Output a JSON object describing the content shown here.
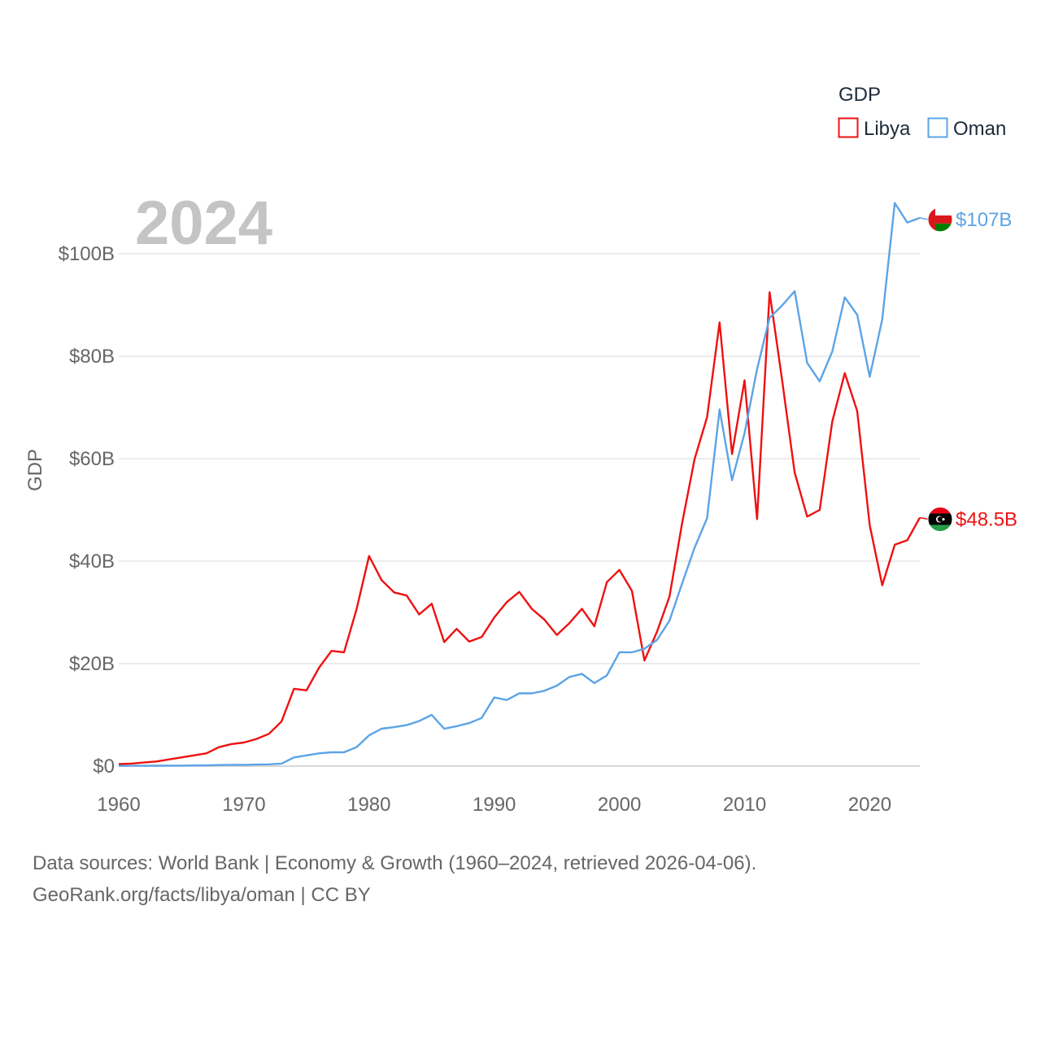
{
  "chart_data": {
    "type": "line",
    "year_label": "2024",
    "ylabel": "GDP",
    "xlabel": "",
    "xlim": [
      1960,
      2024
    ],
    "ylim": [
      0,
      110
    ],
    "x_ticks": [
      1960,
      1970,
      1980,
      1990,
      2000,
      2010,
      2020
    ],
    "y_ticks": [
      0,
      20,
      40,
      60,
      80,
      100
    ],
    "y_tick_labels": [
      "$0",
      "$20B",
      "$40B",
      "$60B",
      "$80B",
      "$100B"
    ],
    "legend": {
      "title": "GDP",
      "position": "top-right"
    },
    "series": [
      {
        "name": "Libya",
        "color": "#ee1111",
        "end_label": "$48.5B",
        "flag": "libya-flag-icon",
        "x": [
          1960,
          1961,
          1962,
          1963,
          1964,
          1965,
          1966,
          1967,
          1968,
          1969,
          1970,
          1971,
          1972,
          1973,
          1974,
          1975,
          1976,
          1977,
          1978,
          1979,
          1980,
          1981,
          1982,
          1983,
          1984,
          1985,
          1986,
          1987,
          1988,
          1989,
          1990,
          1991,
          1992,
          1993,
          1994,
          1995,
          1996,
          1997,
          1998,
          1999,
          2000,
          2001,
          2002,
          2003,
          2004,
          2005,
          2006,
          2007,
          2008,
          2009,
          2010,
          2011,
          2012,
          2013,
          2014,
          2015,
          2016,
          2017,
          2018,
          2019,
          2020,
          2021,
          2022,
          2023,
          2024
        ],
        "values": [
          0.4,
          0.5,
          0.7,
          0.9,
          1.3,
          1.7,
          2.1,
          2.5,
          3.7,
          4.3,
          4.6,
          5.3,
          6.3,
          8.7,
          15.1,
          14.8,
          19.2,
          22.5,
          22.2,
          30.6,
          41.0,
          36.3,
          33.9,
          33.3,
          29.6,
          31.7,
          24.2,
          26.8,
          24.3,
          25.2,
          29.0,
          32.0,
          34.0,
          30.7,
          28.6,
          25.6,
          27.9,
          30.7,
          27.3,
          35.9,
          38.3,
          34.2,
          20.6,
          26.2,
          33.1,
          47.3,
          59.9,
          68.1,
          86.6,
          60.9,
          75.3,
          48.2,
          92.5,
          75.3,
          57.3,
          48.7,
          50.0,
          67.2,
          76.7,
          69.3,
          47.0,
          35.3,
          43.2,
          44.1,
          48.5
        ]
      },
      {
        "name": "Oman",
        "color": "#5ca4e6",
        "end_label": "$107B",
        "flag": "oman-flag-icon",
        "x": [
          1960,
          1961,
          1962,
          1963,
          1964,
          1965,
          1966,
          1967,
          1968,
          1969,
          1970,
          1971,
          1972,
          1973,
          1974,
          1975,
          1976,
          1977,
          1978,
          1979,
          1980,
          1981,
          1982,
          1983,
          1984,
          1985,
          1986,
          1987,
          1988,
          1989,
          1990,
          1991,
          1992,
          1993,
          1994,
          1995,
          1996,
          1997,
          1998,
          1999,
          2000,
          2001,
          2002,
          2003,
          2004,
          2005,
          2006,
          2007,
          2008,
          2009,
          2010,
          2011,
          2012,
          2013,
          2014,
          2015,
          2016,
          2017,
          2018,
          2019,
          2020,
          2021,
          2022,
          2023,
          2024
        ],
        "values": [
          0.05,
          0.06,
          0.07,
          0.08,
          0.09,
          0.1,
          0.12,
          0.15,
          0.2,
          0.25,
          0.26,
          0.3,
          0.35,
          0.5,
          1.7,
          2.1,
          2.5,
          2.7,
          2.7,
          3.7,
          6.0,
          7.3,
          7.6,
          8.0,
          8.8,
          10.0,
          7.3,
          7.8,
          8.4,
          9.4,
          13.4,
          12.9,
          14.2,
          14.2,
          14.7,
          15.7,
          17.4,
          18.0,
          16.2,
          17.7,
          22.2,
          22.2,
          22.9,
          24.6,
          28.4,
          35.6,
          42.6,
          48.4,
          69.6,
          55.8,
          65.0,
          77.5,
          87.5,
          89.9,
          92.7,
          78.7,
          75.1,
          80.9,
          91.5,
          88.1,
          76.0,
          87.2,
          109.9,
          106.1,
          107.0
        ]
      }
    ]
  },
  "footer": {
    "line1": "Data sources: World Bank | Economy & Growth (1960–2024, retrieved 2026-04-06).",
    "line2": "GeoRank.org/facts/libya/oman | CC BY"
  }
}
